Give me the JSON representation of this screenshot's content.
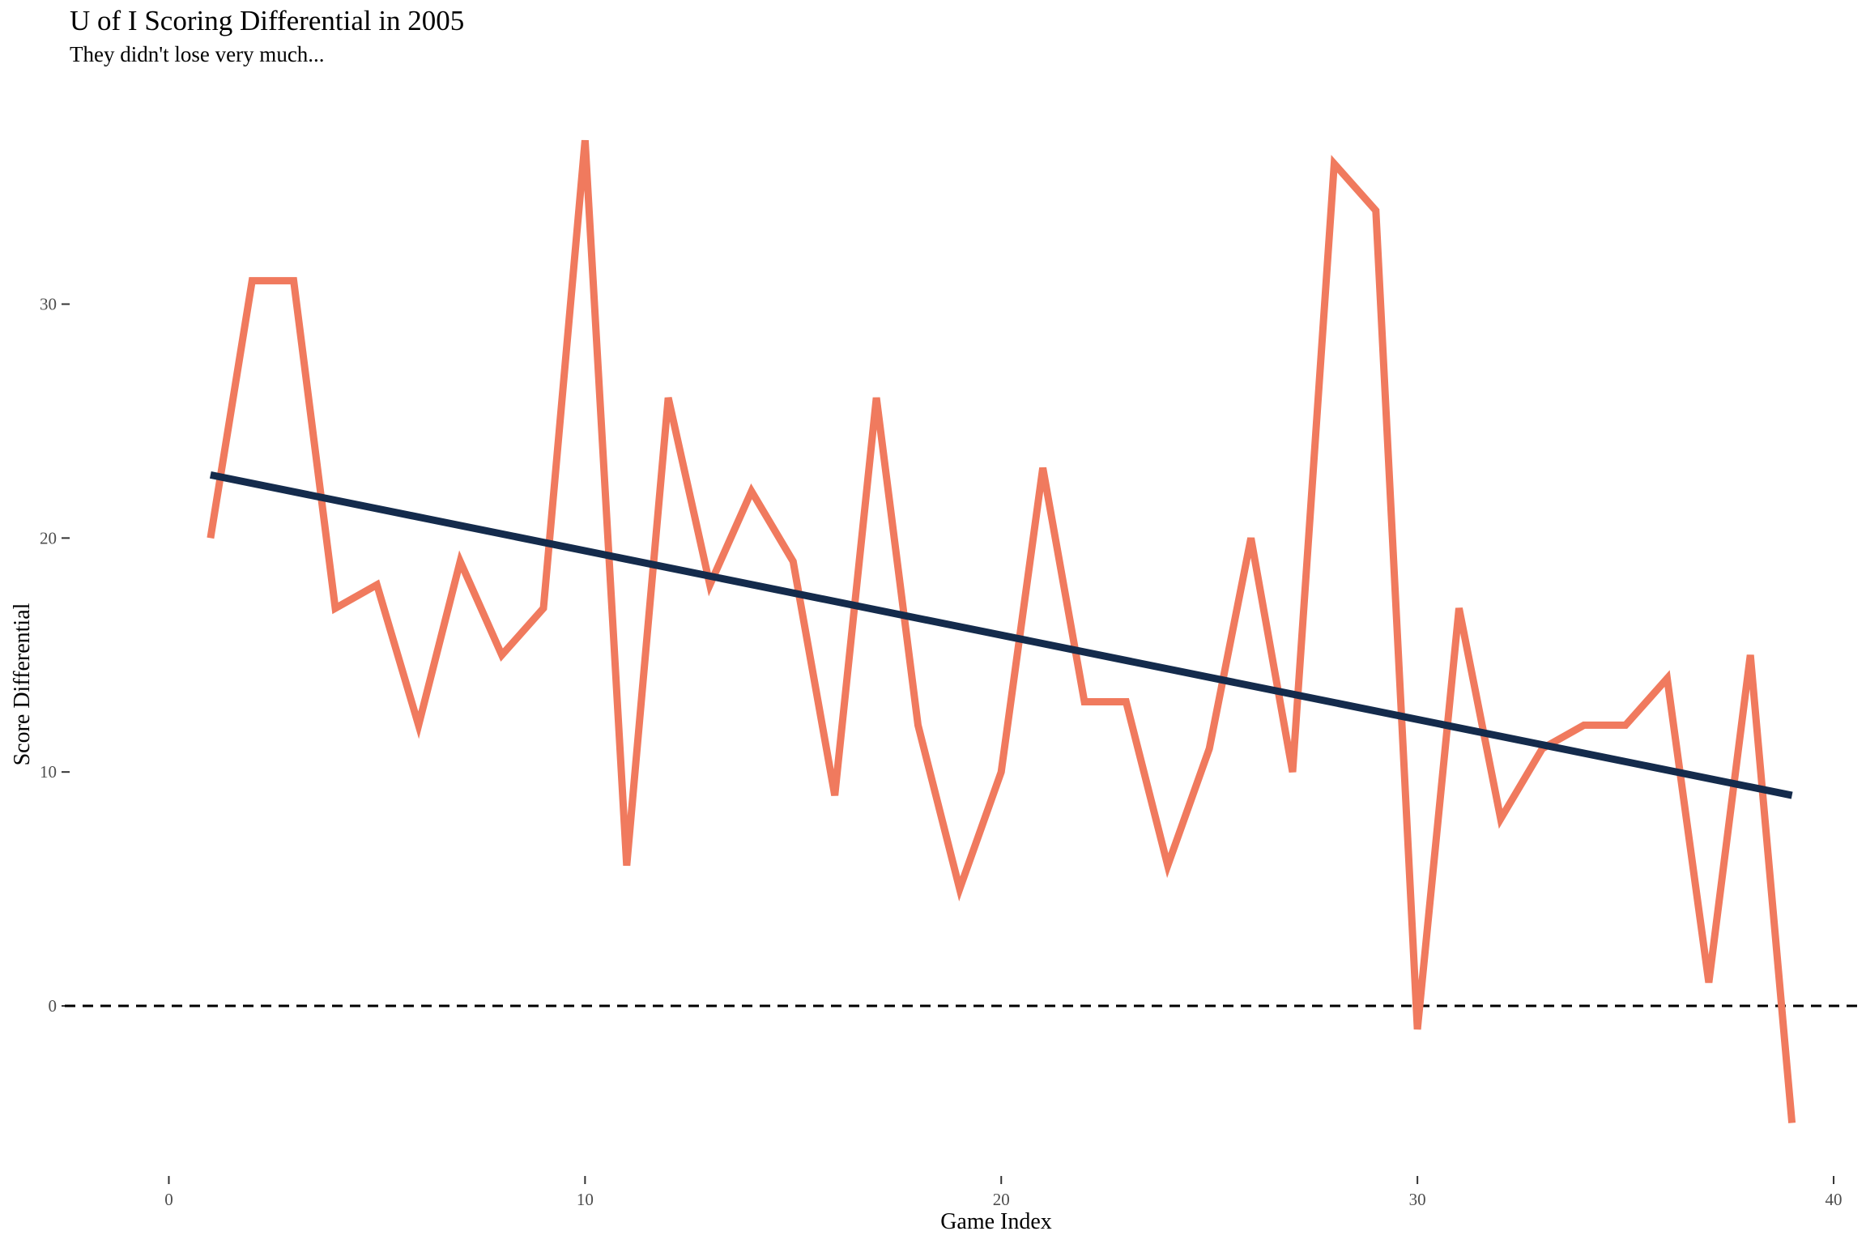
{
  "chart_data": {
    "type": "line",
    "title": "U of I Scoring Differential in 2005",
    "subtitle": "They didn't lose very much...",
    "xlabel": "Game Index",
    "ylabel": "Score Differential",
    "xlim": [
      -2.5,
      40.7
    ],
    "ylim": [
      -7.2,
      38.5
    ],
    "x_ticks": [
      0,
      10,
      20,
      30,
      40
    ],
    "y_ticks": [
      0,
      10,
      20,
      30
    ],
    "grid": false,
    "series": [
      {
        "color": "#F07A5E",
        "x": [
          1,
          2,
          3,
          4,
          5,
          6,
          7,
          8,
          9,
          10,
          11,
          12,
          13,
          14,
          15,
          16,
          17,
          18,
          19,
          20,
          21,
          22,
          23,
          24,
          25,
          26,
          27,
          28,
          29,
          30,
          31,
          32,
          33,
          34,
          35,
          36,
          37,
          38,
          39
        ],
        "y": [
          20,
          31,
          31,
          17,
          18,
          12,
          19,
          15,
          17,
          37,
          6,
          26,
          18,
          22,
          19,
          9,
          26,
          12,
          5,
          10,
          23,
          13,
          13,
          6,
          11,
          20,
          10,
          36,
          34,
          -1,
          17,
          8,
          11,
          12,
          12,
          14,
          1,
          15,
          -5
        ]
      }
    ],
    "trend_line": {
      "color": "#142B4C",
      "x": [
        1,
        39
      ],
      "y": [
        22.7,
        9.0
      ]
    },
    "reference_line": {
      "y": 0,
      "style": "dashed",
      "color": "#000000"
    }
  }
}
